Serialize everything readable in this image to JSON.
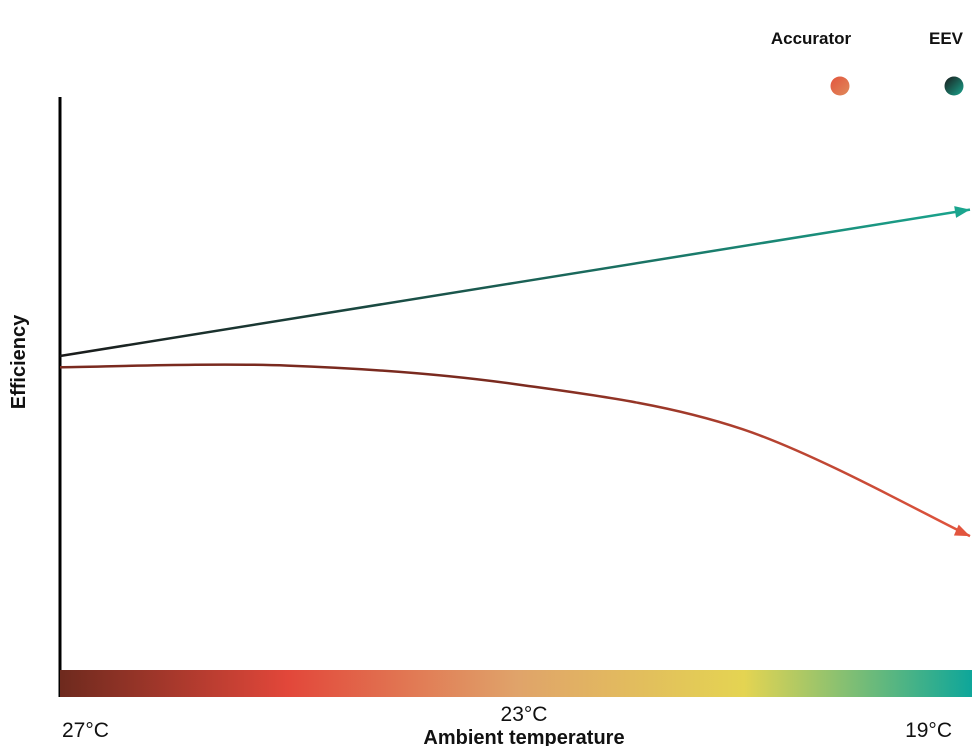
{
  "chart_data": {
    "type": "line",
    "xlabel": "Ambient temperature",
    "ylabel": "Efficiency",
    "x_ticks": [
      "27°C",
      "23°C",
      "19°C"
    ],
    "x_range": [
      27,
      19
    ],
    "y_ticks_shown": false,
    "legend_position": "top-right",
    "series": [
      {
        "name": "Accurator",
        "trend": "flat then decreasing",
        "color_start": "#7a2a1f",
        "color_end": "#e2553e",
        "x": [
          27,
          25,
          23,
          21,
          19
        ],
        "y": [
          0.52,
          0.523,
          0.49,
          0.41,
          0.22
        ]
      },
      {
        "name": "EEV",
        "trend": "increasing",
        "color_start": "#1a1a1a",
        "color_end": "#1aa58e",
        "x": [
          27,
          19
        ],
        "y": [
          0.54,
          0.8
        ]
      }
    ],
    "temperature_gradient_colors": [
      "#6e2a1e",
      "#e2473a",
      "#e0a36a",
      "#e4d452",
      "#0ea69a"
    ]
  }
}
